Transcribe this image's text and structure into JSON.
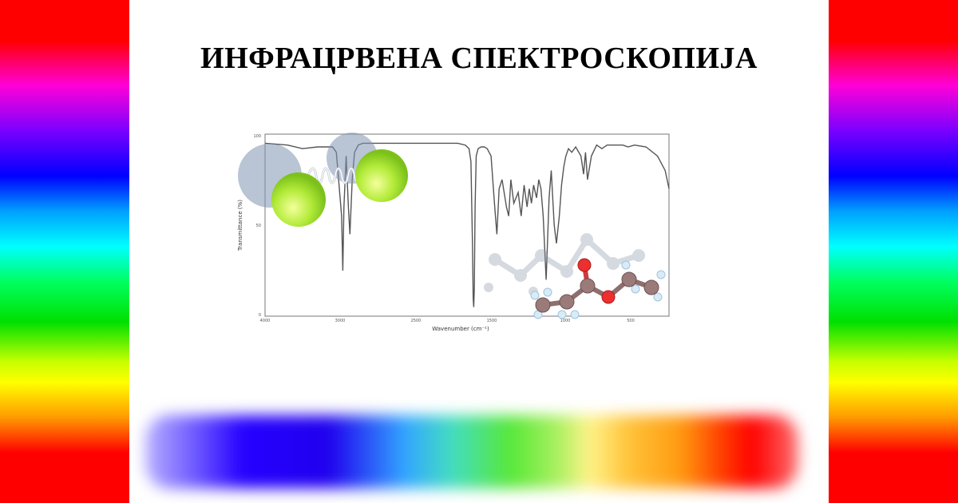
{
  "title": "ИНФРАЦРВЕНА СПЕКТРОСКОПИЈА",
  "chart_data": {
    "type": "line",
    "xlabel": "Wavenumber (cm⁻¹)",
    "ylabel": "Transmittance (%)",
    "xlim": [
      4000,
      400
    ],
    "ylim": [
      0,
      100
    ],
    "x_ticks": [
      "4000",
      "3000",
      "2500",
      "1500",
      "1000",
      "500"
    ],
    "y_ticks": [
      "100",
      "50",
      "0"
    ],
    "grid": false,
    "series": [
      {
        "x": [
          4000,
          3700,
          3500,
          3300,
          3100,
          3050,
          2990,
          2982,
          2975,
          2960,
          2945,
          2935,
          2920,
          2905,
          2880,
          2850,
          2700,
          2500,
          2300,
          2100,
          1950,
          1850,
          1800,
          1775,
          1755,
          1745,
          1738,
          1730,
          1720,
          1705,
          1680,
          1640,
          1600,
          1560,
          1510,
          1480,
          1465,
          1450,
          1430,
          1400,
          1385,
          1370,
          1350,
          1320,
          1300,
          1280,
          1260,
          1245,
          1230,
          1215,
          1195,
          1180,
          1165,
          1150,
          1130,
          1110,
          1095,
          1075,
          1060,
          1040,
          1025,
          1010,
          995,
          975,
          950,
          920,
          880,
          860,
          845,
          830,
          800,
          760,
          720,
          680,
          640,
          600,
          560,
          520,
          490,
          460,
          430,
          410,
          400
        ],
        "y": [
          95,
          94,
          92,
          93,
          93,
          90,
          55,
          25,
          60,
          88,
          60,
          45,
          75,
          90,
          94,
          95,
          95,
          95,
          95,
          95,
          95,
          94,
          92,
          85,
          40,
          10,
          5,
          15,
          60,
          88,
          92,
          93,
          93,
          92,
          88,
          60,
          45,
          70,
          75,
          60,
          55,
          75,
          62,
          68,
          55,
          72,
          60,
          70,
          62,
          72,
          65,
          75,
          70,
          55,
          20,
          65,
          80,
          50,
          40,
          55,
          72,
          82,
          88,
          92,
          90,
          93,
          88,
          78,
          90,
          75,
          88,
          94,
          92,
          94,
          94,
          94,
          94,
          93,
          94,
          93,
          88,
          80,
          70
        ]
      }
    ]
  }
}
